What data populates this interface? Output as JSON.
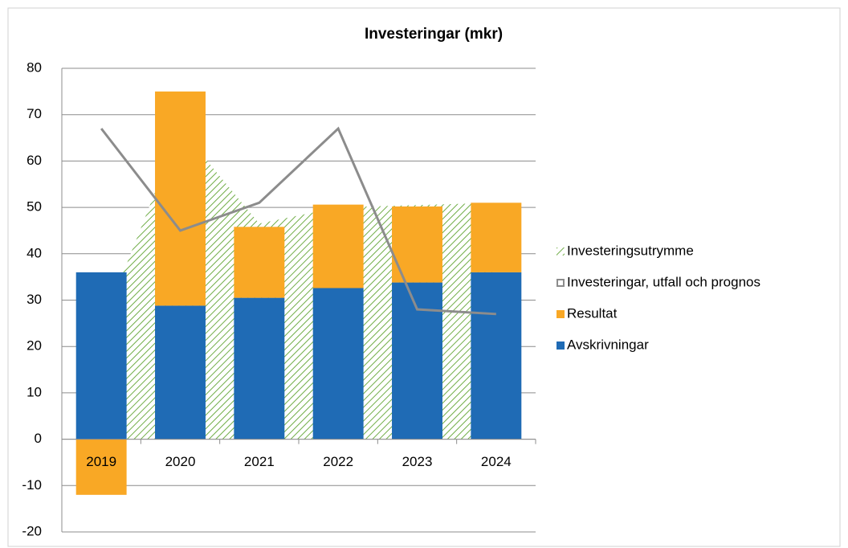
{
  "chart_data": {
    "type": "bar",
    "title": "Investeringar (mkr)",
    "categories": [
      "2019",
      "2020",
      "2021",
      "2022",
      "2023",
      "2024"
    ],
    "ylim": [
      -20,
      80
    ],
    "yticks": [
      -20,
      -10,
      0,
      10,
      20,
      30,
      40,
      50,
      60,
      70,
      80
    ],
    "grid": true,
    "legend": "right",
    "series": [
      {
        "name": "Investeringsutrymme",
        "color": "#70ad47",
        "kind": "area",
        "values": [
          24,
          67,
          46.5,
          50,
          50.5,
          51
        ]
      },
      {
        "name": "Investeringar, utfall och prognos",
        "color": "#8c8c8c",
        "kind": "line",
        "values": [
          67,
          45,
          51,
          67,
          28,
          27
        ]
      },
      {
        "name": "Resultat",
        "color": "#f9a825",
        "kind": "stack",
        "values": [
          -12,
          46.2,
          15.3,
          18,
          16.4,
          15
        ]
      },
      {
        "name": "Avskrivningar",
        "color": "#1f6bb5",
        "kind": "stack",
        "values": [
          36,
          28.8,
          30.5,
          32.6,
          33.8,
          36
        ]
      }
    ]
  }
}
